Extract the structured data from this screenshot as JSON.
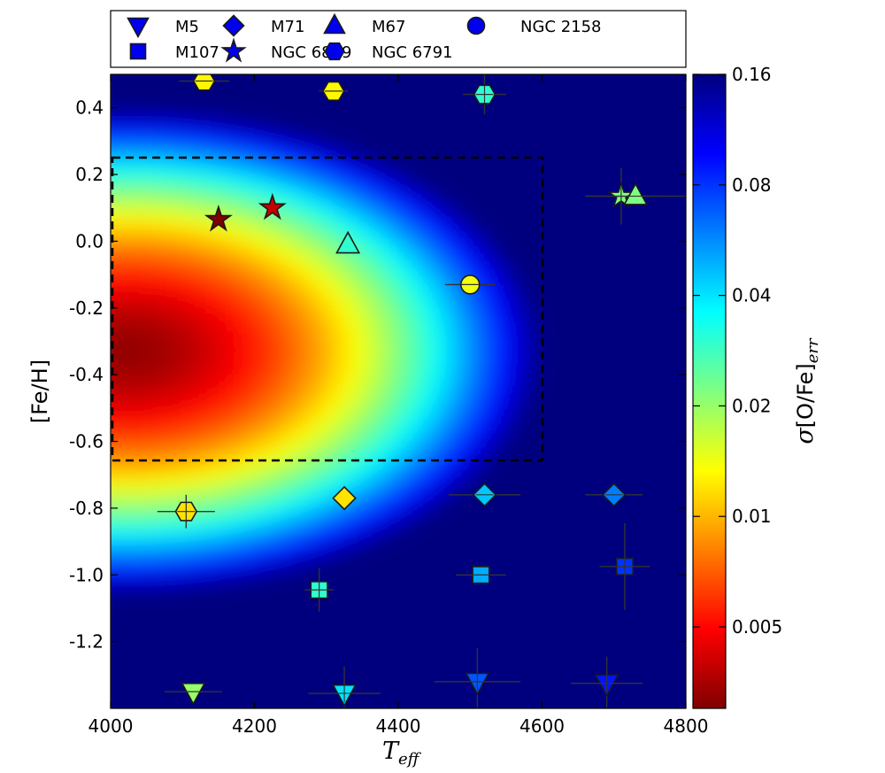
{
  "chart_data": {
    "type": "scatter",
    "xlabel": "T",
    "xlabel_sub": "eff",
    "ylabel": "[Fe/H]",
    "colorbar_label_sigma": "σ",
    "colorbar_label_main": "[O/Fe]",
    "colorbar_label_sub": "err",
    "xlim": [
      4000,
      4800
    ],
    "ylim": [
      -1.4,
      0.5
    ],
    "x_ticks": [
      4000,
      4200,
      4400,
      4600,
      4800
    ],
    "y_ticks": [
      0.4,
      0.2,
      0.0,
      -0.2,
      -0.4,
      -0.6,
      -0.8,
      -1.0,
      -1.2
    ],
    "y_tick_labels": [
      "0.4",
      "0.2",
      "0.0",
      "-0.2",
      "-0.4",
      "-0.6",
      "-0.8",
      "-1.0",
      "-1.2"
    ],
    "colorbar": {
      "scale": "log",
      "range": [
        0.003,
        0.16
      ],
      "ticks": [
        0.005,
        0.01,
        0.02,
        0.04,
        0.08,
        0.16
      ],
      "tick_labels": [
        "0.005",
        "0.01",
        "0.02",
        "0.04",
        "0.08",
        "0.16"
      ],
      "colormap": "jet_reversed",
      "colors": [
        "#7f0000",
        "#ff0000",
        "#ff8000",
        "#ffff00",
        "#80ff80",
        "#00ffff",
        "#0080ff",
        "#0000ff",
        "#00007f"
      ]
    },
    "region_box": {
      "x": [
        4000,
        4600
      ],
      "y": [
        -0.65,
        0.25
      ],
      "style": "dashed"
    },
    "legend": {
      "placement": "top",
      "entries": [
        {
          "name": "M5",
          "marker": "triangle-down"
        },
        {
          "name": "M71",
          "marker": "diamond"
        },
        {
          "name": "M67",
          "marker": "triangle-up"
        },
        {
          "name": "NGC 2158",
          "marker": "circle"
        },
        {
          "name": "M107",
          "marker": "square"
        },
        {
          "name": "NGC 6819",
          "marker": "star"
        },
        {
          "name": "NGC 6791",
          "marker": "hexagon"
        }
      ],
      "marker_color": "#0000ee"
    },
    "series": [
      {
        "name": "M5",
        "marker": "triangle-down",
        "points": [
          {
            "x": 4115,
            "y": -1.35,
            "xerr": 40,
            "yerr": 0,
            "sigma": 0.02
          },
          {
            "x": 4325,
            "y": -1.355,
            "xerr": 50,
            "yerr": 0.08,
            "sigma": 0.04
          },
          {
            "x": 4510,
            "y": -1.32,
            "xerr": 60,
            "yerr": 0.1,
            "sigma": 0.07
          },
          {
            "x": 4690,
            "y": -1.325,
            "xerr": 50,
            "yerr": 0.08,
            "sigma": 0.09
          }
        ]
      },
      {
        "name": "M107",
        "marker": "square",
        "points": [
          {
            "x": 4290,
            "y": -1.045,
            "xerr": 20,
            "yerr": 0.065,
            "sigma": 0.03
          },
          {
            "x": 4515,
            "y": -1.0,
            "xerr": 35,
            "yerr": 0,
            "sigma": 0.05
          },
          {
            "x": 4715,
            "y": -0.975,
            "xerr": 35,
            "yerr": 0.13,
            "sigma": 0.08
          }
        ]
      },
      {
        "name": "M71",
        "marker": "diamond",
        "points": [
          {
            "x": 4325,
            "y": -0.77,
            "xerr": 0,
            "yerr": 0,
            "sigma": 0.012
          },
          {
            "x": 4520,
            "y": -0.76,
            "xerr": 50,
            "yerr": 0,
            "sigma": 0.045
          },
          {
            "x": 4700,
            "y": -0.76,
            "xerr": 40,
            "yerr": 0,
            "sigma": 0.06
          }
        ]
      },
      {
        "name": "NGC 6819",
        "marker": "star",
        "points": [
          {
            "x": 4150,
            "y": 0.065,
            "xerr": 0,
            "yerr": 0,
            "sigma": 0.003
          },
          {
            "x": 4225,
            "y": 0.1,
            "xerr": 0,
            "yerr": 0,
            "sigma": 0.004
          },
          {
            "x": 4710,
            "y": 0.135,
            "xerr": 50,
            "yerr": 0.085,
            "sigma": 0.022
          }
        ]
      },
      {
        "name": "M67",
        "marker": "triangle-up",
        "points": [
          {
            "x": 4330,
            "y": -0.01,
            "xerr": 0,
            "yerr": 0,
            "sigma": 0.03
          },
          {
            "x": 4730,
            "y": 0.135,
            "xerr": 70,
            "yerr": 0,
            "sigma": 0.022
          }
        ]
      },
      {
        "name": "NGC 2158",
        "marker": "circle",
        "points": [
          {
            "x": 4500,
            "y": -0.13,
            "xerr": 35,
            "yerr": 0,
            "sigma": 0.014
          }
        ]
      },
      {
        "name": "NGC 6791",
        "marker": "hexagon",
        "points": [
          {
            "x": 4130,
            "y": 0.48,
            "xerr": 35,
            "yerr": 0,
            "sigma": 0.013
          },
          {
            "x": 4310,
            "y": 0.45,
            "xerr": 20,
            "yerr": 0,
            "sigma": 0.013
          },
          {
            "x": 4520,
            "y": 0.44,
            "xerr": 30,
            "yerr": 0.06,
            "sigma": 0.03
          },
          {
            "x": 4105,
            "y": -0.81,
            "xerr": 40,
            "yerr": 0.05,
            "sigma": 0.012
          }
        ]
      }
    ]
  }
}
